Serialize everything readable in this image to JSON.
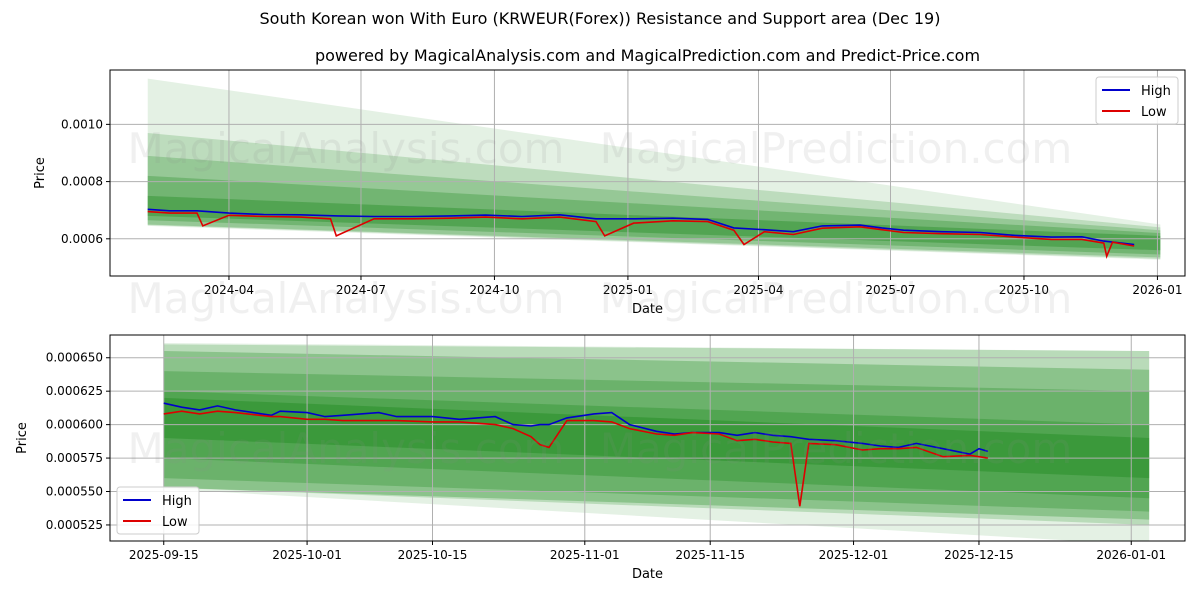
{
  "title": "South Korean won With Euro (KRWEUR(Forex)) Resistance and Support area (Dec 19)",
  "subtitle": "powered by MagicalAnalysis.com and MagicalPrediction.com and Predict-Price.com",
  "watermarks": [
    "MagicalAnalysis.com",
    "MagicalPrediction.com"
  ],
  "colors": {
    "high": "#0000cc",
    "low": "#dd0000",
    "band": "#228b22"
  },
  "chart_data": [
    {
      "type": "line",
      "xlabel": "Date",
      "ylabel": "Price",
      "xlim": [
        "2024-01-10",
        "2026-01-20"
      ],
      "ylim": [
        0.00047,
        0.00119
      ],
      "xticks": [
        "2024-04",
        "2024-07",
        "2024-10",
        "2025-01",
        "2025-04",
        "2025-07",
        "2025-10",
        "2026-01"
      ],
      "xtick_dates": [
        "2024-04-01",
        "2024-07-01",
        "2024-10-01",
        "2025-01-01",
        "2025-04-01",
        "2025-07-01",
        "2025-10-01",
        "2026-01-01"
      ],
      "yticks": [
        "0.0006",
        "0.0008",
        "0.0010"
      ],
      "ytick_values": [
        0.0006,
        0.0008,
        0.001
      ],
      "legend": {
        "position": "top-right",
        "entries": [
          "High",
          "Low"
        ]
      },
      "bands": {
        "start": "2024-02-05",
        "end": "2026-01-03",
        "items": [
          {
            "top": [
              0.00116,
              0.00065
            ],
            "bottom": [
              0.000645,
              0.000527
            ],
            "opacity": 0.12
          },
          {
            "top": [
              0.00097,
              0.00064
            ],
            "bottom": [
              0.000648,
              0.00053
            ],
            "opacity": 0.2
          },
          {
            "top": [
              0.00089,
              0.00063
            ],
            "bottom": [
              0.00065,
              0.000535
            ],
            "opacity": 0.25
          },
          {
            "top": [
              0.00082,
              0.00062
            ],
            "bottom": [
              0.000665,
              0.000545
            ],
            "opacity": 0.3
          },
          {
            "top": [
              0.00075,
              0.00061
            ],
            "bottom": [
              0.00068,
              0.00056
            ],
            "opacity": 0.4
          }
        ]
      },
      "series": [
        {
          "name": "High",
          "x": [
            "2024-02-05",
            "2024-02-20",
            "2024-03-10",
            "2024-04-01",
            "2024-04-25",
            "2024-05-20",
            "2024-06-15",
            "2024-07-10",
            "2024-08-05",
            "2024-09-01",
            "2024-09-25",
            "2024-10-20",
            "2024-11-15",
            "2024-12-10",
            "2025-01-05",
            "2025-02-01",
            "2025-02-25",
            "2025-03-15",
            "2025-04-05",
            "2025-04-25",
            "2025-05-15",
            "2025-06-10",
            "2025-06-25",
            "2025-07-10",
            "2025-08-05",
            "2025-09-01",
            "2025-09-25",
            "2025-10-20",
            "2025-11-10",
            "2025-11-25",
            "2025-12-16"
          ],
          "y": [
            0.000703,
            0.000698,
            0.000698,
            0.00069,
            0.000685,
            0.000684,
            0.00068,
            0.000678,
            0.000678,
            0.00068,
            0.000683,
            0.000678,
            0.000684,
            0.00067,
            0.00067,
            0.000672,
            0.000668,
            0.000638,
            0.000632,
            0.000625,
            0.000645,
            0.000648,
            0.000638,
            0.00063,
            0.000625,
            0.000622,
            0.000612,
            0.000606,
            0.000607,
            0.000592,
            0.00058
          ]
        },
        {
          "name": "Low",
          "x": [
            "2024-02-05",
            "2024-02-20",
            "2024-03-10",
            "2024-03-14",
            "2024-04-01",
            "2024-04-25",
            "2024-05-20",
            "2024-06-10",
            "2024-06-14",
            "2024-07-10",
            "2024-08-05",
            "2024-09-01",
            "2024-09-25",
            "2024-10-20",
            "2024-11-15",
            "2024-12-10",
            "2024-12-16",
            "2025-01-05",
            "2025-02-01",
            "2025-02-25",
            "2025-03-15",
            "2025-03-22",
            "2025-04-05",
            "2025-04-25",
            "2025-05-15",
            "2025-06-10",
            "2025-06-25",
            "2025-07-10",
            "2025-08-05",
            "2025-09-01",
            "2025-09-25",
            "2025-10-20",
            "2025-11-10",
            "2025-11-25",
            "2025-11-27",
            "2025-12-01",
            "2025-12-16"
          ],
          "y": [
            0.000695,
            0.00069,
            0.00069,
            0.000645,
            0.000682,
            0.000678,
            0.000676,
            0.00067,
            0.00061,
            0.00067,
            0.00067,
            0.000672,
            0.000676,
            0.00067,
            0.000676,
            0.00066,
            0.00061,
            0.000655,
            0.000663,
            0.00066,
            0.00063,
            0.00058,
            0.000625,
            0.000615,
            0.000637,
            0.000642,
            0.000632,
            0.000622,
            0.000618,
            0.000615,
            0.000606,
            0.000598,
            0.000598,
            0.000585,
            0.000539,
            0.000588,
            0.000575
          ]
        }
      ]
    },
    {
      "type": "line",
      "xlabel": "Date",
      "ylabel": "Price",
      "xlim": [
        "2025-09-09",
        "2026-01-07"
      ],
      "ylim": [
        0.000513,
        0.000667
      ],
      "xticks": [
        "2025-09-15",
        "2025-10-01",
        "2025-10-15",
        "2025-11-01",
        "2025-11-15",
        "2025-12-01",
        "2025-12-15",
        "2026-01-01"
      ],
      "yticks": [
        "0.000525",
        "0.000550",
        "0.000575",
        "0.000600",
        "0.000625",
        "0.000650"
      ],
      "ytick_values": [
        0.000525,
        0.00055,
        0.000575,
        0.0006,
        0.000625,
        0.00065
      ],
      "legend": {
        "position": "bottom-left",
        "entries": [
          "High",
          "Low"
        ]
      },
      "bands": {
        "start": "2025-09-15",
        "end": "2026-01-03",
        "items": [
          {
            "top": [
              0.000661,
              0.000655
            ],
            "bottom": [
              0.000552,
              0.00051
            ],
            "opacity": 0.12
          },
          {
            "top": [
              0.00066,
              0.000655
            ],
            "bottom": [
              0.000553,
              0.000525
            ],
            "opacity": 0.22
          },
          {
            "top": [
              0.000655,
              0.000641
            ],
            "bottom": [
              0.000553,
              0.000529
            ],
            "opacity": 0.3
          },
          {
            "top": [
              0.00064,
              0.000625
            ],
            "bottom": [
              0.00056,
              0.000535
            ],
            "opacity": 0.3
          },
          {
            "top": [
              0.000625,
              0.0006
            ],
            "bottom": [
              0.000575,
              0.000545
            ],
            "opacity": 0.35
          },
          {
            "top": [
              0.00062,
              0.00059
            ],
            "bottom": [
              0.00059,
              0.00056
            ],
            "opacity": 0.45
          }
        ]
      },
      "series": [
        {
          "name": "High",
          "x": [
            "2025-09-15",
            "2025-09-17",
            "2025-09-19",
            "2025-09-21",
            "2025-09-23",
            "2025-09-27",
            "2025-09-28",
            "2025-10-01",
            "2025-10-03",
            "2025-10-05",
            "2025-10-09",
            "2025-10-11",
            "2025-10-15",
            "2025-10-18",
            "2025-10-22",
            "2025-10-24",
            "2025-10-26",
            "2025-10-27",
            "2025-10-28",
            "2025-10-30",
            "2025-11-02",
            "2025-11-04",
            "2025-11-06",
            "2025-11-09",
            "2025-11-11",
            "2025-11-13",
            "2025-11-16",
            "2025-11-18",
            "2025-11-20",
            "2025-11-22",
            "2025-11-24",
            "2025-11-25",
            "2025-11-26",
            "2025-11-29",
            "2025-12-02",
            "2025-12-04",
            "2025-12-06",
            "2025-12-08",
            "2025-12-11",
            "2025-12-14",
            "2025-12-15",
            "2025-12-16"
          ],
          "y": [
            0.000616,
            0.000613,
            0.000611,
            0.000614,
            0.000611,
            0.000607,
            0.00061,
            0.000609,
            0.000606,
            0.000607,
            0.000609,
            0.000606,
            0.000606,
            0.000604,
            0.000606,
            0.0006,
            0.000599,
            0.0006,
            0.0006,
            0.000605,
            0.000608,
            0.000609,
            0.0006,
            0.000595,
            0.000593,
            0.000594,
            0.000594,
            0.000592,
            0.000594,
            0.000592,
            0.000591,
            0.00059,
            0.000589,
            0.000588,
            0.000586,
            0.000584,
            0.000583,
            0.000586,
            0.000582,
            0.000578,
            0.000582,
            0.00058
          ]
        },
        {
          "name": "Low",
          "x": [
            "2025-09-15",
            "2025-09-17",
            "2025-09-19",
            "2025-09-21",
            "2025-09-23",
            "2025-09-27",
            "2025-09-28",
            "2025-10-01",
            "2025-10-03",
            "2025-10-05",
            "2025-10-09",
            "2025-10-11",
            "2025-10-15",
            "2025-10-18",
            "2025-10-22",
            "2025-10-24",
            "2025-10-26",
            "2025-10-27",
            "2025-10-28",
            "2025-10-30",
            "2025-11-02",
            "2025-11-04",
            "2025-11-06",
            "2025-11-09",
            "2025-11-11",
            "2025-11-13",
            "2025-11-16",
            "2025-11-18",
            "2025-11-20",
            "2025-11-22",
            "2025-11-24",
            "2025-11-25",
            "2025-11-26",
            "2025-11-29",
            "2025-12-02",
            "2025-12-04",
            "2025-12-06",
            "2025-12-08",
            "2025-12-11",
            "2025-12-14",
            "2025-12-15",
            "2025-12-16"
          ],
          "y": [
            0.000608,
            0.00061,
            0.000608,
            0.00061,
            0.000609,
            0.000606,
            0.000606,
            0.000604,
            0.000604,
            0.000603,
            0.000603,
            0.000603,
            0.000602,
            0.000602,
            0.0006,
            0.000597,
            0.000591,
            0.000585,
            0.000583,
            0.000603,
            0.000603,
            0.000602,
            0.000597,
            0.000593,
            0.000592,
            0.000594,
            0.000593,
            0.000588,
            0.000589,
            0.000587,
            0.000586,
            0.000539,
            0.000586,
            0.000585,
            0.000581,
            0.000582,
            0.000582,
            0.000583,
            0.000576,
            0.000577,
            0.000576,
            0.000575
          ]
        }
      ]
    }
  ]
}
